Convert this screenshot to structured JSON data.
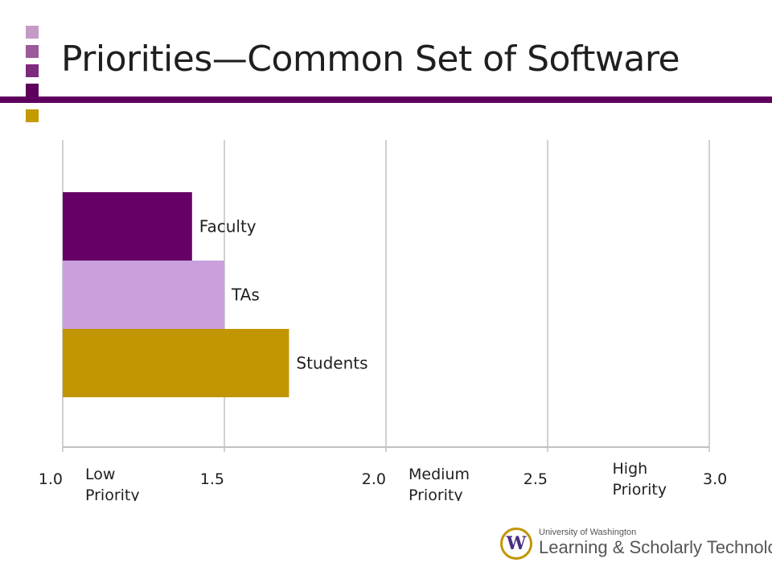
{
  "header": {
    "title": "Priorities—Common Set of Software",
    "square_colors": [
      "#c69ac7",
      "#9b5a9a",
      "#7e2a7d",
      "#5e005e",
      "#c49a00"
    ],
    "rule_color": "#5e005e"
  },
  "chart_data": {
    "type": "bar",
    "orientation": "horizontal",
    "categories": [
      "Faculty",
      "TAs",
      "Students"
    ],
    "values": [
      1.4,
      1.5,
      1.7
    ],
    "colors": [
      "#660066",
      "#c9a0dc",
      "#c29503"
    ],
    "xlim": [
      1.0,
      3.0
    ],
    "xticks": [
      {
        "value": 1.0,
        "label": "1.0"
      },
      {
        "value": 1.5,
        "label": "1.5"
      },
      {
        "value": 2.0,
        "label": "2.0"
      },
      {
        "value": 2.5,
        "label": "2.5"
      },
      {
        "value": 3.0,
        "label": "3.0"
      }
    ],
    "annotations": [
      {
        "value": 1.0,
        "lines": [
          "Low",
          "Priority"
        ]
      },
      {
        "value": 2.0,
        "lines": [
          "Medium",
          "Priority"
        ]
      },
      {
        "value": 2.75,
        "lines": [
          "High",
          "Priority"
        ]
      }
    ],
    "grid": true,
    "grid_color": "#c0c0c0"
  },
  "logo": {
    "line1": "University of Washington",
    "line2": "Learning & Scholarly Technologies",
    "mark": "W"
  }
}
